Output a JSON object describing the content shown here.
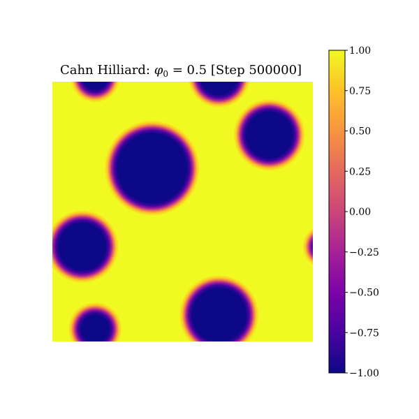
{
  "chart_data": {
    "type": "heatmap",
    "title": {
      "prefix": "Cahn Hilliard: ",
      "symbol": "φ",
      "subscript": "0",
      "suffix": " = 0.5 [Step 500000]"
    },
    "colormap": "plasma",
    "colors": {
      "background_phase": "#f0f921",
      "droplet_phase": "#0d0887",
      "interface_mid": "#cc4778"
    },
    "value_range": [
      -1.0,
      1.0
    ],
    "domain": {
      "x": [
        0,
        1
      ],
      "y": [
        0,
        1
      ]
    },
    "interface_width": 0.05,
    "droplets": [
      {
        "cx": 0.383,
        "cy": 0.667,
        "r": 0.158
      },
      {
        "cx": 0.833,
        "cy": 0.795,
        "r": 0.113
      },
      {
        "cx": 0.115,
        "cy": 0.365,
        "r": 0.115
      },
      {
        "cx": 0.64,
        "cy": 0.102,
        "r": 0.128
      },
      {
        "cx": 0.164,
        "cy": 0.048,
        "r": 0.078
      },
      {
        "cx": 0.164,
        "cy": 1.015,
        "r": 0.07
      },
      {
        "cx": 0.64,
        "cy": 1.02,
        "r": 0.095
      },
      {
        "cx": 1.045,
        "cy": 0.365,
        "r": 0.06
      }
    ],
    "colorbar": {
      "ticks": [
        1.0,
        0.75,
        0.5,
        0.25,
        0.0,
        -0.25,
        -0.5,
        -0.75,
        -1.0
      ],
      "tick_labels": [
        "1.00",
        "0.75",
        "0.50",
        "0.25",
        "0.00",
        "−0.25",
        "−0.50",
        "−0.75",
        "−1.00"
      ]
    }
  }
}
